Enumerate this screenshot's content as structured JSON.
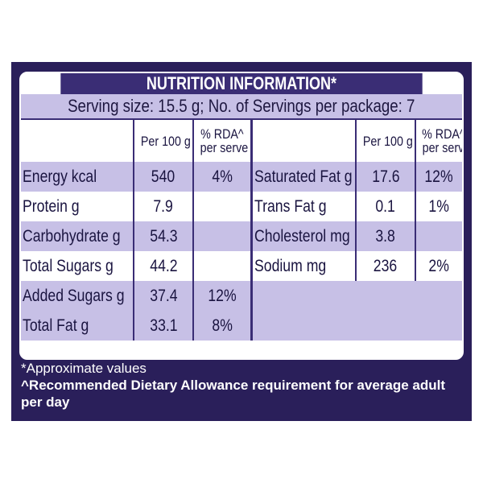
{
  "panel": {
    "title": "NUTRITION INFORMATION*",
    "serving": "Serving size: 15.5 g; No. of Servings per package: 7",
    "headers": {
      "per100": "Per 100 g",
      "rda1": "% RDA^",
      "rda2": "per serve"
    },
    "left_rows": [
      {
        "label": "Energy kcal",
        "per100": "540",
        "rda": "4%"
      },
      {
        "label": "Protein g",
        "per100": "7.9",
        "rda": ""
      },
      {
        "label": "Carbohydrate g",
        "per100": "54.3",
        "rda": ""
      },
      {
        "label": "Total Sugars g",
        "per100": "44.2",
        "rda": ""
      },
      {
        "label": "Added Sugars g",
        "per100": "37.4",
        "rda": "12%"
      },
      {
        "label": "Total Fat g",
        "per100": "33.1",
        "rda": "8%"
      }
    ],
    "right_rows": [
      {
        "label": "Saturated Fat g",
        "per100": "17.6",
        "rda": "12%"
      },
      {
        "label": "Trans Fat g",
        "per100": "0.1",
        "rda": "1%"
      },
      {
        "label": "Cholesterol mg",
        "per100": "3.8",
        "rda": ""
      },
      {
        "label": "Sodium mg",
        "per100": "236",
        "rda": "2%"
      }
    ],
    "footnote1": "*Approximate values",
    "footnote2": "^Recommended Dietary Allowance requirement for average adult per day"
  },
  "colors": {
    "panel_bg": "#2a1f5a",
    "title_bg": "#3a2d75",
    "stripe": "#c7c0e6"
  }
}
